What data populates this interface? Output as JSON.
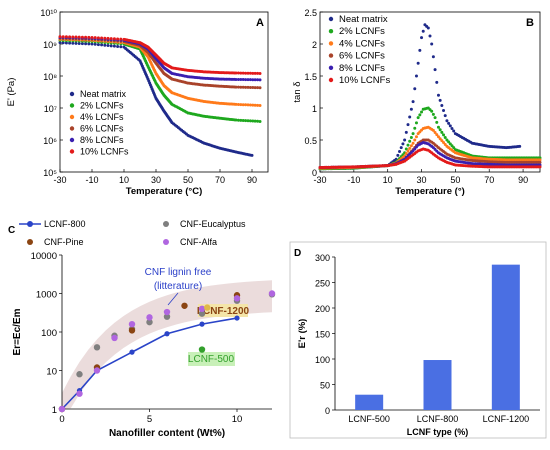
{
  "chart_data": [
    {
      "panel": "A",
      "type": "scatter",
      "xlabel": "Temperature (°C)",
      "ylabel": "E' (Pa)",
      "xlim": [
        -30,
        100
      ],
      "ylim": [
        100000,
        10000000000
      ],
      "yscale": "log",
      "xticks": [
        "-30",
        "-10",
        "10",
        "30",
        "50",
        "70",
        "90"
      ],
      "yticks": [
        "10⁵",
        "10⁶",
        "10⁷",
        "10⁸",
        "10⁹",
        "10¹⁰"
      ],
      "legend_position": "bottom-left",
      "series": [
        {
          "name": "Neat matrix",
          "color": "#1f2a8a",
          "x": [
            -30,
            -10,
            10,
            20,
            25,
            30,
            35,
            40,
            50,
            60,
            70,
            80,
            90
          ],
          "y": [
            1100000000,
            1000000000,
            800000000,
            300000000,
            80000000,
            20000000,
            8000000,
            3500000,
            1400000,
            800000,
            550000,
            420000,
            330000
          ]
        },
        {
          "name": "2% LCNFs",
          "color": "#1ea81e",
          "x": [
            -30,
            -10,
            10,
            20,
            25,
            30,
            35,
            40,
            50,
            60,
            70,
            80,
            95
          ],
          "y": [
            1300000000,
            1200000000,
            1000000000,
            700000000,
            200000000,
            60000000,
            25000000,
            13000000,
            7000000,
            5500000,
            4800000,
            4200000,
            3800000
          ]
        },
        {
          "name": "4% LCNFs",
          "color": "#ff7a1a",
          "x": [
            -30,
            -10,
            10,
            20,
            25,
            30,
            35,
            40,
            50,
            60,
            70,
            80,
            95
          ],
          "y": [
            1400000000,
            1300000000,
            1100000000,
            800000000,
            400000000,
            120000000,
            50000000,
            30000000,
            20000000,
            16000000,
            14000000,
            13000000,
            12000000
          ]
        },
        {
          "name": "6% LCNFs",
          "color": "#a9432a",
          "x": [
            -30,
            -10,
            10,
            20,
            25,
            30,
            35,
            40,
            50,
            60,
            70,
            80,
            95
          ],
          "y": [
            1500000000,
            1400000000,
            1200000000,
            900000000,
            550000000,
            250000000,
            120000000,
            80000000,
            60000000,
            52000000,
            48000000,
            45000000,
            43000000
          ]
        },
        {
          "name": "8% LCNFs",
          "color": "#3a1fb0",
          "x": [
            -30,
            -10,
            10,
            20,
            25,
            30,
            35,
            40,
            50,
            60,
            70,
            80,
            95
          ],
          "y": [
            1600000000,
            1500000000,
            1300000000,
            1000000000,
            700000000,
            350000000,
            180000000,
            120000000,
            95000000,
            85000000,
            80000000,
            78000000,
            76000000
          ]
        },
        {
          "name": "10% LCNFs",
          "color": "#e31a1a",
          "x": [
            -30,
            -10,
            10,
            20,
            25,
            30,
            35,
            40,
            50,
            60,
            70,
            80,
            95
          ],
          "y": [
            1700000000,
            1600000000,
            1400000000,
            1100000000,
            800000000,
            450000000,
            250000000,
            180000000,
            150000000,
            135000000,
            128000000,
            124000000,
            120000000
          ]
        }
      ]
    },
    {
      "panel": "B",
      "type": "scatter",
      "xlabel": "Temperature (°)",
      "ylabel": "tan δ",
      "xlim": [
        -30,
        100
      ],
      "ylim": [
        0,
        2.5
      ],
      "xticks": [
        "-30",
        "-10",
        "10",
        "30",
        "50",
        "70",
        "90"
      ],
      "yticks": [
        "0",
        "0.5",
        "1",
        "1.5",
        "2",
        "2.5"
      ],
      "legend_position": "top-left",
      "series": [
        {
          "name": "Neat matrix",
          "color": "#1f2a8a",
          "x": [
            -30,
            -10,
            10,
            15,
            20,
            25,
            28,
            30,
            32,
            34,
            36,
            38,
            40,
            45,
            50,
            60,
            70,
            80,
            88
          ],
          "y": [
            0.05,
            0.06,
            0.1,
            0.2,
            0.5,
            1.1,
            1.7,
            2.1,
            2.3,
            2.25,
            2.0,
            1.6,
            1.2,
            0.8,
            0.6,
            0.45,
            0.4,
            0.38,
            0.4
          ]
        },
        {
          "name": "2% LCNFs",
          "color": "#1ea81e",
          "x": [
            -30,
            -10,
            10,
            15,
            20,
            25,
            28,
            31,
            34,
            36,
            38,
            40,
            45,
            50,
            60,
            70,
            80,
            100
          ],
          "y": [
            0.05,
            0.06,
            0.1,
            0.15,
            0.3,
            0.6,
            0.85,
            0.98,
            1.0,
            0.95,
            0.85,
            0.7,
            0.5,
            0.35,
            0.25,
            0.22,
            0.22,
            0.22
          ]
        },
        {
          "name": "4% LCNFs",
          "color": "#ff7a1a",
          "x": [
            -30,
            -10,
            10,
            15,
            20,
            25,
            28,
            31,
            34,
            37,
            40,
            45,
            50,
            60,
            70,
            80,
            100
          ],
          "y": [
            0.06,
            0.07,
            0.1,
            0.14,
            0.25,
            0.45,
            0.6,
            0.68,
            0.7,
            0.65,
            0.55,
            0.4,
            0.3,
            0.22,
            0.2,
            0.19,
            0.19
          ]
        },
        {
          "name": "6% LCNFs",
          "color": "#a9432a",
          "x": [
            -30,
            -10,
            10,
            15,
            20,
            25,
            28,
            31,
            34,
            37,
            40,
            45,
            50,
            60,
            70,
            80,
            100
          ],
          "y": [
            0.07,
            0.08,
            0.1,
            0.13,
            0.2,
            0.35,
            0.45,
            0.5,
            0.5,
            0.45,
            0.38,
            0.28,
            0.22,
            0.18,
            0.16,
            0.15,
            0.15
          ]
        },
        {
          "name": "8% LCNFs",
          "color": "#3a1fb0",
          "x": [
            -30,
            -10,
            10,
            15,
            20,
            25,
            28,
            31,
            34,
            37,
            40,
            45,
            50,
            60,
            70,
            80,
            100
          ],
          "y": [
            0.07,
            0.08,
            0.1,
            0.13,
            0.2,
            0.33,
            0.42,
            0.46,
            0.44,
            0.38,
            0.3,
            0.22,
            0.17,
            0.13,
            0.12,
            0.11,
            0.11
          ]
        },
        {
          "name": "10% LCNFs",
          "color": "#e31a1a",
          "x": [
            -30,
            -10,
            10,
            15,
            20,
            25,
            28,
            31,
            34,
            37,
            40,
            45,
            50,
            60,
            70,
            80,
            100
          ],
          "y": [
            0.07,
            0.08,
            0.1,
            0.12,
            0.17,
            0.27,
            0.33,
            0.36,
            0.34,
            0.28,
            0.22,
            0.15,
            0.11,
            0.09,
            0.08,
            0.08,
            0.08
          ]
        }
      ]
    },
    {
      "panel": "C",
      "type": "scatter",
      "xlabel": "Nanofiller content (Wt%)",
      "ylabel": "Er=Ec/Em",
      "xlim": [
        0,
        12
      ],
      "ylim": [
        1,
        10000
      ],
      "yscale": "log",
      "xticks": [
        "0",
        "5",
        "10"
      ],
      "yticks": [
        "1",
        "10",
        "100",
        "1000",
        "10000"
      ],
      "legend_position": "top",
      "annotations": [
        "CNF lignin free",
        "(litterature)",
        "LCNF-1200",
        "LCNF-500"
      ],
      "series": [
        {
          "name": "LCNF-800",
          "color": "#2a44c8",
          "line": true,
          "x": [
            0,
            1,
            2,
            4,
            6,
            8,
            10
          ],
          "y": [
            1,
            3,
            10,
            30,
            90,
            160,
            230
          ]
        },
        {
          "name": "CNF-Eucalyptus",
          "color": "#7f7f7f",
          "x": [
            0,
            1,
            2,
            3,
            4,
            5,
            6,
            8,
            10,
            12
          ],
          "y": [
            1,
            8,
            40,
            80,
            120,
            180,
            250,
            300,
            650,
            950
          ]
        },
        {
          "name": "CNF-Pine",
          "color": "#8b4513",
          "x": [
            0,
            2,
            4,
            7,
            10
          ],
          "y": [
            1,
            12,
            110,
            480,
            900
          ]
        },
        {
          "name": "CNF-Alfa",
          "color": "#b066e0",
          "x": [
            0,
            1,
            2,
            3,
            4,
            5,
            6,
            8,
            10,
            12
          ],
          "y": [
            1,
            2.5,
            10,
            70,
            160,
            240,
            330,
            400,
            750,
            1000
          ]
        },
        {
          "name": "LCNF-1200",
          "color": "#e0b84a",
          "x": [
            8.3
          ],
          "y": [
            430
          ]
        },
        {
          "name": "LCNF-500",
          "color": "#33a02c",
          "x": [
            8
          ],
          "y": [
            35
          ]
        }
      ]
    },
    {
      "panel": "D",
      "type": "bar",
      "xlabel": "LCNF type (%)",
      "ylabel": "E'r (%)",
      "ylim": [
        0,
        300
      ],
      "yticks": [
        "0",
        "50",
        "100",
        "150",
        "200",
        "250",
        "300"
      ],
      "categories": [
        "LCNF-500",
        "LCNF-800",
        "LCNF-1200"
      ],
      "values": [
        30,
        98,
        285
      ],
      "color": "#4a6fe3"
    }
  ],
  "labels": {
    "panelA": "A",
    "panelB": "B",
    "panelC": "C",
    "panelD": "D"
  }
}
